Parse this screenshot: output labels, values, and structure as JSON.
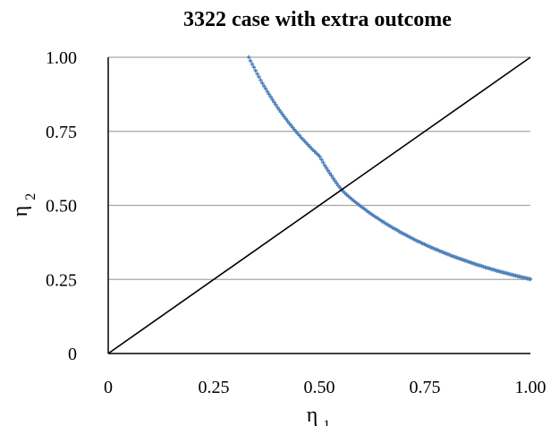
{
  "chart_data": {
    "type": "scatter",
    "title": "3322 case with extra outcome",
    "xlabel": "η",
    "xlabel_sub": "1",
    "ylabel": "η",
    "ylabel_sub": "2",
    "xlim": [
      0,
      1
    ],
    "ylim": [
      0,
      1
    ],
    "x_ticks": [
      0,
      0.25,
      0.5,
      0.75,
      1
    ],
    "x_tick_labels": [
      "0",
      "0.25",
      "0.50",
      "0.75",
      "1.00"
    ],
    "y_ticks": [
      0,
      0.25,
      0.5,
      0.75,
      1
    ],
    "y_tick_labels": [
      "0",
      "0.25",
      "0.50",
      "0.75",
      "1.00"
    ],
    "grid": true,
    "legend": false,
    "series": [
      {
        "type": "scatter",
        "color": "#4a7ebb",
        "marker": "plus",
        "x": [
          0.333,
          0.337,
          0.341,
          0.345,
          0.349,
          0.353,
          0.357,
          0.361,
          0.365,
          0.369,
          0.373,
          0.377,
          0.381,
          0.385,
          0.389,
          0.393,
          0.397,
          0.401,
          0.405,
          0.409,
          0.413,
          0.417,
          0.421,
          0.425,
          0.429,
          0.433,
          0.437,
          0.441,
          0.445,
          0.449,
          0.453,
          0.457,
          0.461,
          0.465,
          0.469,
          0.473,
          0.477,
          0.481,
          0.485,
          0.489,
          0.493,
          0.497,
          0.501,
          0.505,
          0.509,
          0.513,
          0.517,
          0.521,
          0.525,
          0.529,
          0.533,
          0.537,
          0.541,
          0.545,
          0.549,
          0.553,
          0.557,
          0.561,
          0.565,
          0.569,
          0.573,
          0.577,
          0.581,
          0.585,
          0.589,
          0.593,
          0.597,
          0.601,
          0.605,
          0.609,
          0.613,
          0.617,
          0.621,
          0.625,
          0.629,
          0.633,
          0.637,
          0.641,
          0.645,
          0.649,
          0.653,
          0.657,
          0.661,
          0.665,
          0.669,
          0.673,
          0.677,
          0.681,
          0.685,
          0.689,
          0.693,
          0.697,
          0.701,
          0.705,
          0.709,
          0.713,
          0.717,
          0.721,
          0.725,
          0.729,
          0.733,
          0.737,
          0.741,
          0.745,
          0.749,
          0.753,
          0.757,
          0.761,
          0.765,
          0.769,
          0.773,
          0.777,
          0.781,
          0.785,
          0.789,
          0.793,
          0.797,
          0.801,
          0.805,
          0.809,
          0.813,
          0.817,
          0.821,
          0.825,
          0.829,
          0.833,
          0.837,
          0.841,
          0.845,
          0.849,
          0.853,
          0.857,
          0.861,
          0.865,
          0.869,
          0.873,
          0.877,
          0.881,
          0.885,
          0.889,
          0.893,
          0.897,
          0.901,
          0.905,
          0.909,
          0.913,
          0.917,
          0.921,
          0.925,
          0.929,
          0.933,
          0.937,
          0.941,
          0.945,
          0.949,
          0.953,
          0.957,
          0.961,
          0.965,
          0.969,
          0.973,
          0.977,
          0.981,
          0.985,
          0.989,
          0.993,
          0.997,
          1.0
        ],
        "y": [
          1.0,
          0.988,
          0.977,
          0.966,
          0.955,
          0.944,
          0.934,
          0.923,
          0.913,
          0.903,
          0.894,
          0.884,
          0.875,
          0.866,
          0.857,
          0.848,
          0.84,
          0.831,
          0.823,
          0.815,
          0.807,
          0.799,
          0.792,
          0.784,
          0.777,
          0.77,
          0.763,
          0.756,
          0.749,
          0.742,
          0.736,
          0.729,
          0.723,
          0.717,
          0.711,
          0.705,
          0.699,
          0.693,
          0.687,
          0.682,
          0.676,
          0.671,
          0.665,
          0.655,
          0.645,
          0.635,
          0.626,
          0.617,
          0.608,
          0.6,
          0.591,
          0.583,
          0.575,
          0.567,
          0.56,
          0.553,
          0.547,
          0.541,
          0.536,
          0.531,
          0.526,
          0.521,
          0.516,
          0.512,
          0.507,
          0.503,
          0.498,
          0.494,
          0.49,
          0.486,
          0.481,
          0.477,
          0.473,
          0.469,
          0.465,
          0.461,
          0.458,
          0.454,
          0.45,
          0.446,
          0.443,
          0.439,
          0.436,
          0.432,
          0.429,
          0.425,
          0.422,
          0.419,
          0.416,
          0.412,
          0.409,
          0.406,
          0.403,
          0.4,
          0.397,
          0.394,
          0.391,
          0.388,
          0.385,
          0.382,
          0.379,
          0.377,
          0.374,
          0.371,
          0.369,
          0.366,
          0.363,
          0.361,
          0.358,
          0.356,
          0.353,
          0.351,
          0.349,
          0.346,
          0.344,
          0.342,
          0.339,
          0.337,
          0.335,
          0.333,
          0.33,
          0.328,
          0.326,
          0.324,
          0.322,
          0.32,
          0.318,
          0.316,
          0.314,
          0.312,
          0.31,
          0.308,
          0.306,
          0.304,
          0.302,
          0.3,
          0.298,
          0.297,
          0.295,
          0.293,
          0.291,
          0.289,
          0.288,
          0.286,
          0.284,
          0.283,
          0.281,
          0.279,
          0.278,
          0.276,
          0.275,
          0.273,
          0.272,
          0.27,
          0.269,
          0.267,
          0.266,
          0.264,
          0.263,
          0.261,
          0.26,
          0.259,
          0.257,
          0.256,
          0.255,
          0.253,
          0.252,
          0.251
        ]
      },
      {
        "type": "line",
        "color": "#000000",
        "x": [
          0,
          1
        ],
        "y": [
          0,
          1
        ]
      }
    ]
  }
}
